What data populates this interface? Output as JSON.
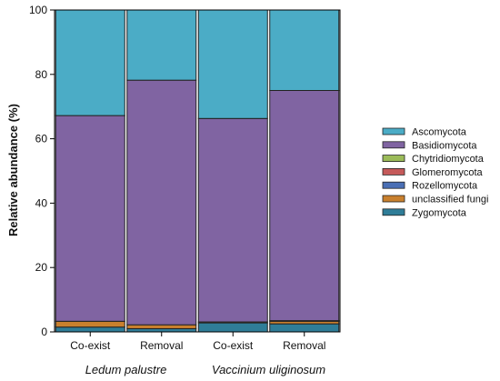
{
  "chart_data": {
    "type": "bar",
    "stacked": true,
    "categories": [
      "Co-exist",
      "Removal",
      "Co-exist",
      "Removal"
    ],
    "groups": [
      {
        "label": "Ledum palustre",
        "categories": [
          0,
          1
        ]
      },
      {
        "label": "Vaccinium uliginosum",
        "categories": [
          2,
          3
        ]
      }
    ],
    "ylabel": "Relative abundance (%)",
    "xlabel": "",
    "ylim": [
      0,
      100
    ],
    "yticks": [
      0,
      20,
      40,
      60,
      80,
      100
    ],
    "grid": false,
    "legend_position": "right",
    "series": [
      {
        "name": "Zygomycota",
        "color": "#2f7d98",
        "values": [
          1.5,
          1.0,
          2.8,
          2.5
        ]
      },
      {
        "name": "unclassified fungi",
        "color": "#c9802e",
        "values": [
          1.8,
          1.2,
          0.3,
          0.8
        ]
      },
      {
        "name": "Rozellomycota",
        "color": "#4a6fb5",
        "values": [
          0.0,
          0.0,
          0.0,
          0.0
        ]
      },
      {
        "name": "Glomeromycota",
        "color": "#c55a5a",
        "values": [
          0.0,
          0.0,
          0.0,
          0.2
        ]
      },
      {
        "name": "Chytridiomycota",
        "color": "#9bbb59",
        "values": [
          0.0,
          0.0,
          0.0,
          0.0
        ]
      },
      {
        "name": "Basidiomycota",
        "color": "#8064a2",
        "values": [
          63.9,
          76.0,
          63.2,
          71.5
        ]
      },
      {
        "name": "Ascomycota",
        "color": "#4bacc6",
        "values": [
          32.8,
          21.8,
          33.7,
          25.0
        ]
      }
    ],
    "legend_order": [
      "Ascomycota",
      "Basidiomycota",
      "Chytridiomycota",
      "Glomeromycota",
      "Rozellomycota",
      "unclassified fungi",
      "Zygomycota"
    ]
  }
}
